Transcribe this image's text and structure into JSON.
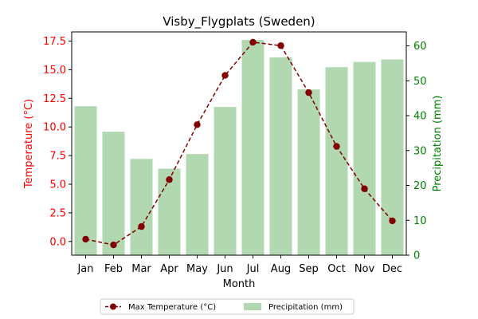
{
  "chart_data": {
    "type": "bar",
    "title": "Visby_Flygplats (Sweden)",
    "xlabel": "Month",
    "categories": [
      "Jan",
      "Feb",
      "Mar",
      "Apr",
      "May",
      "Jun",
      "Jul",
      "Aug",
      "Sep",
      "Oct",
      "Nov",
      "Dec"
    ],
    "temperature": {
      "name": "Max Temperature (°C)",
      "type": "line",
      "axis": "left",
      "ylabel": "Temperature (°C)",
      "ylim": [
        -1.2,
        18.3
      ],
      "ticks": [
        0.0,
        2.5,
        5.0,
        7.5,
        10.0,
        12.5,
        15.0,
        17.5
      ],
      "tick_labels": [
        "0.0",
        "2.5",
        "5.0",
        "7.5",
        "10.0",
        "12.5",
        "15.0",
        "17.5"
      ],
      "values": [
        0.2,
        -0.3,
        1.3,
        5.4,
        10.2,
        14.5,
        17.4,
        17.1,
        13.0,
        8.3,
        4.6,
        1.8
      ],
      "color": "#800000",
      "label_color": "#ff0000"
    },
    "precipitation": {
      "name": "Precipitation (mm)",
      "type": "bar",
      "axis": "right",
      "ylabel": "Precipitation (mm)",
      "ylim": [
        0,
        64
      ],
      "ticks": [
        0,
        10,
        20,
        30,
        40,
        50,
        60
      ],
      "tick_labels": [
        "0",
        "10",
        "20",
        "30",
        "40",
        "50",
        "60"
      ],
      "values": [
        42.7,
        35.4,
        27.6,
        24.8,
        29.0,
        42.5,
        61.7,
        56.7,
        47.5,
        53.9,
        55.4,
        56.1
      ],
      "color": "#b2d8b2",
      "label_color": "#008000"
    },
    "legend": {
      "placement": "bottom-center",
      "entries": [
        "Max Temperature (°C)",
        "Precipitation (mm)"
      ]
    },
    "grid": false
  }
}
